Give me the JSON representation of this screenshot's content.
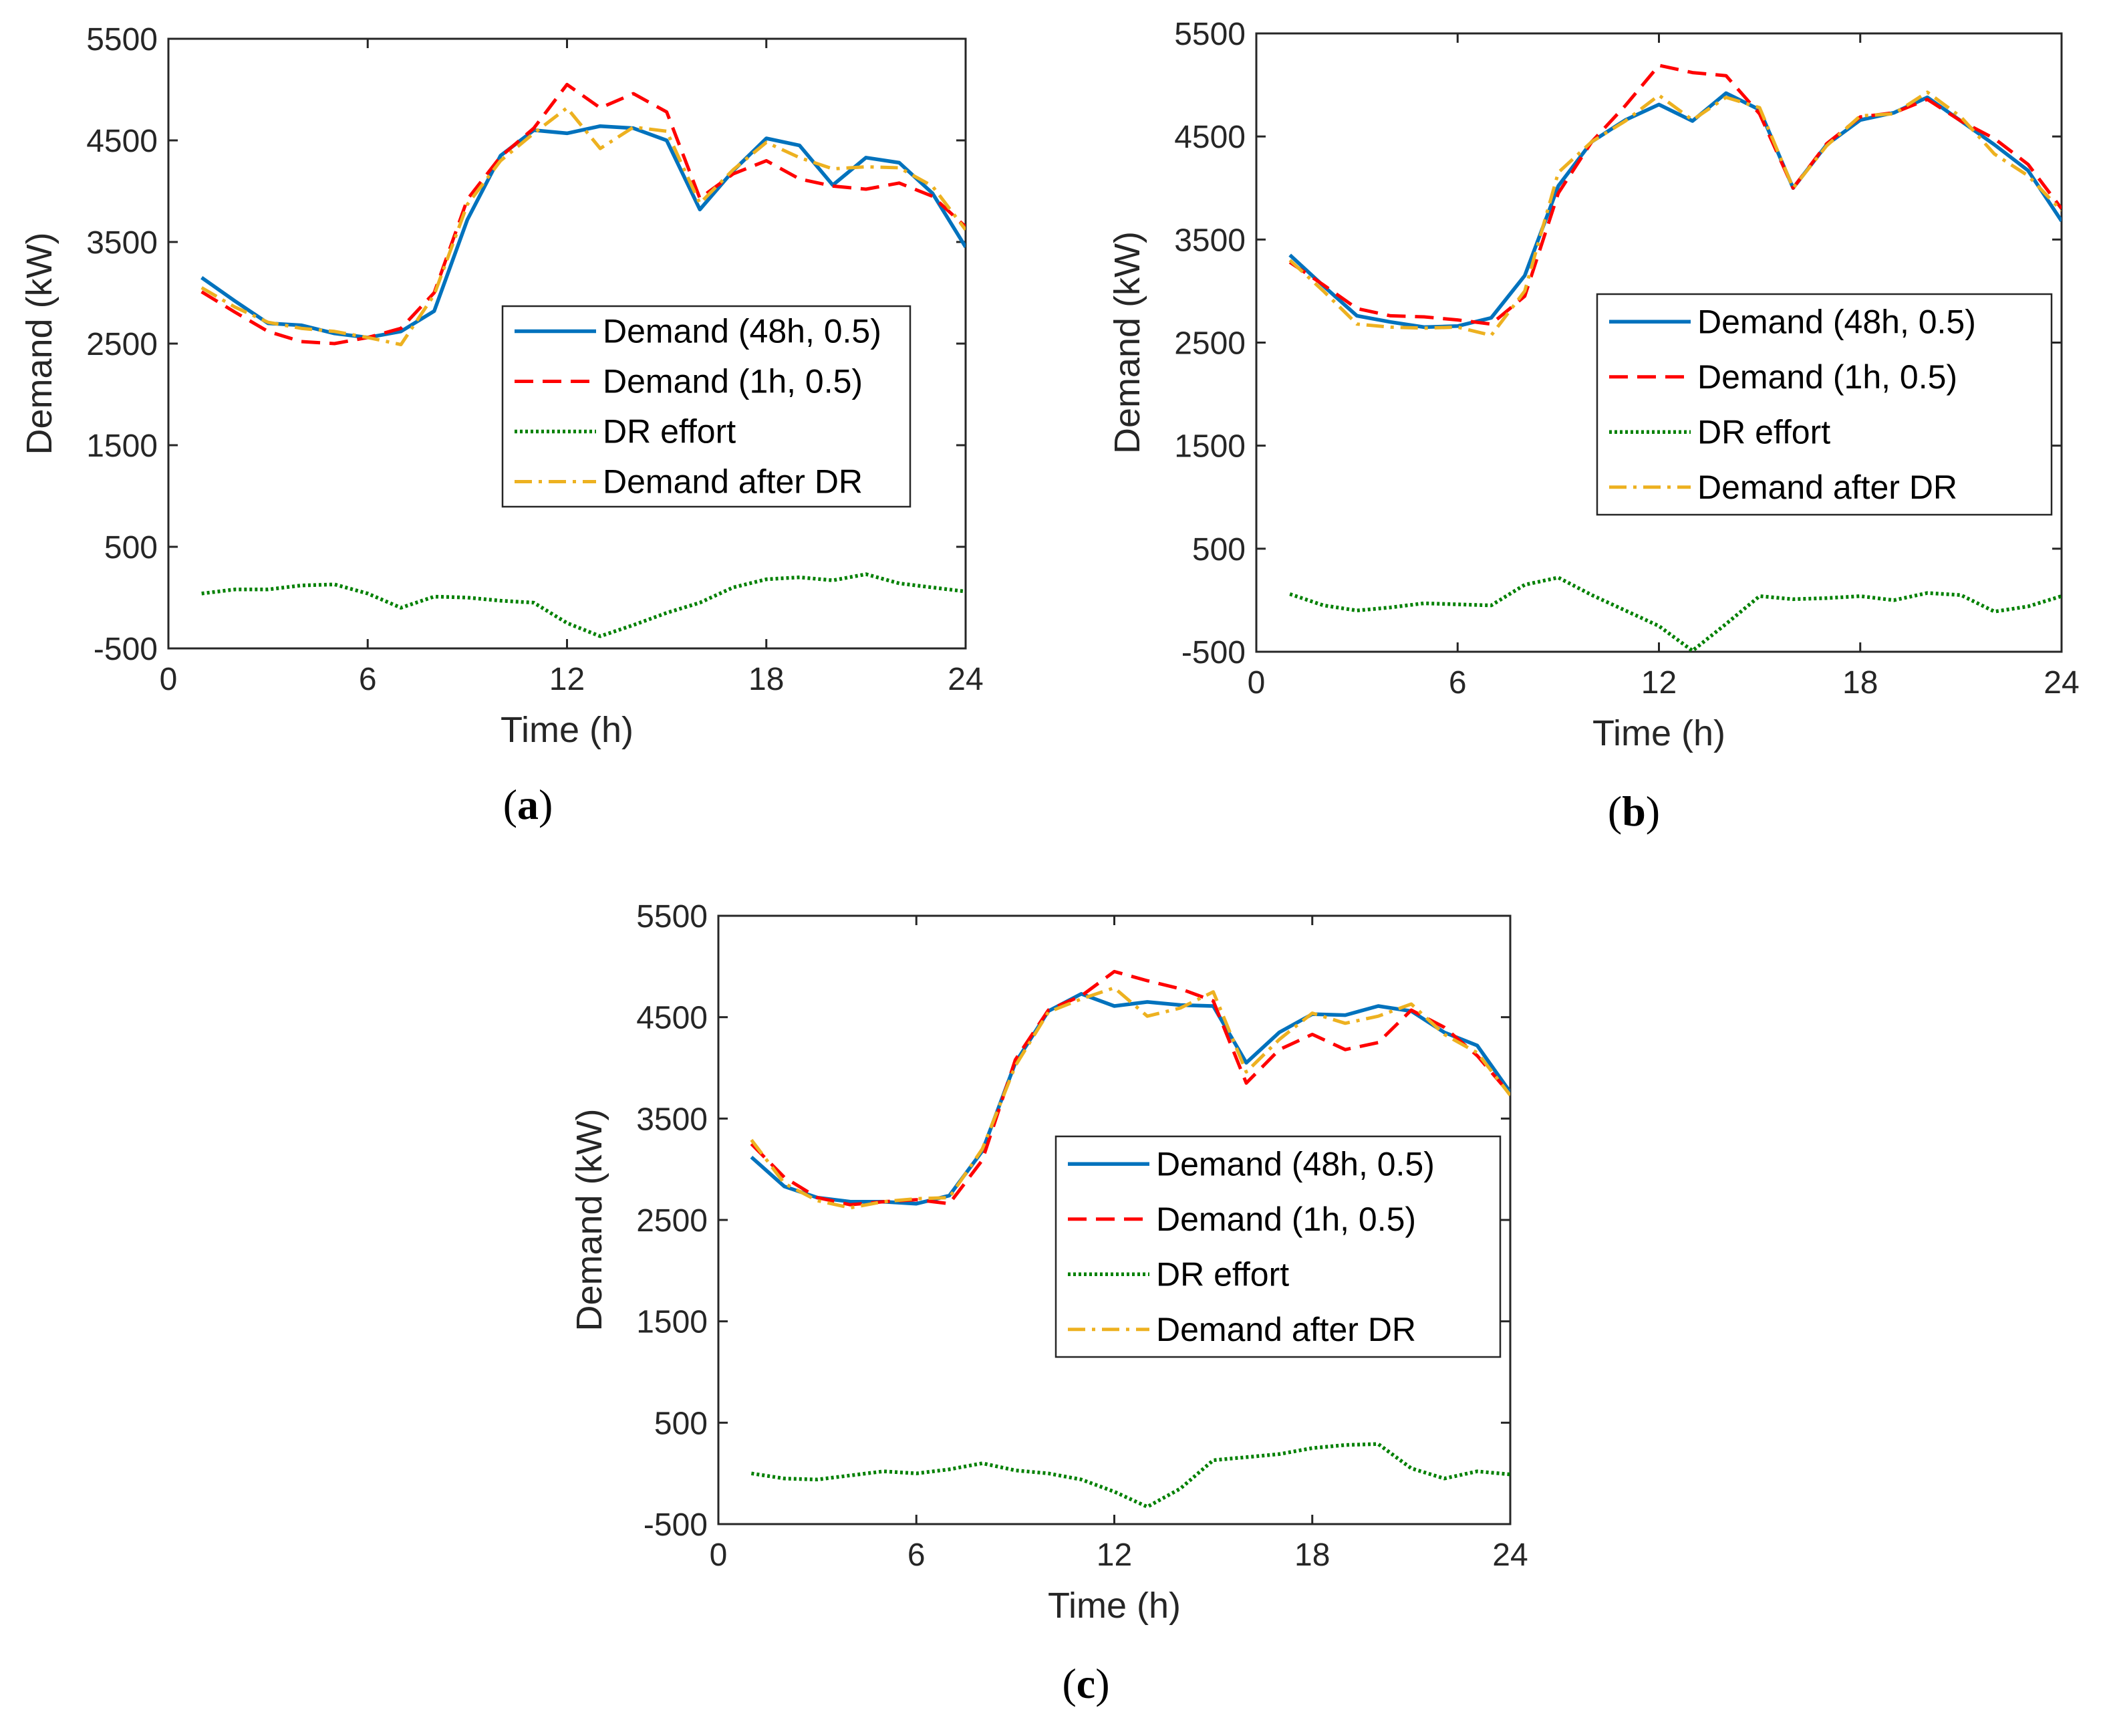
{
  "colors": {
    "demand_48h": "#0072BD",
    "demand_1h": "#FF0000",
    "dr_effort": "#008000",
    "demand_after_dr": "#EDB120",
    "axis": "#262626"
  },
  "chart_data": [
    {
      "type": "line",
      "panel_label": "a",
      "xlabel": "Time (h)",
      "ylabel": "Demand (kW)",
      "xlim": [
        0,
        24
      ],
      "ylim": [
        -500,
        5500
      ],
      "xticks": [
        "0",
        "6",
        "12",
        "18",
        "24"
      ],
      "yticks": [
        "-500",
        "500",
        "1500",
        "2500",
        "3500",
        "4500",
        "5500"
      ],
      "grid": false,
      "legend_position": "right",
      "x": [
        1,
        2,
        3,
        4,
        5,
        6,
        7,
        8,
        9,
        10,
        11,
        12,
        13,
        14,
        15,
        16,
        17,
        18,
        19,
        20,
        21,
        22,
        23,
        24
      ],
      "series": [
        {
          "name": "Demand (48h, 0.5)",
          "style": "solid",
          "values": [
            3150,
            2920,
            2700,
            2680,
            2600,
            2560,
            2620,
            2820,
            3720,
            4350,
            4600,
            4570,
            4640,
            4620,
            4500,
            3820,
            4200,
            4520,
            4450,
            4060,
            4330,
            4280,
            3980,
            3450
          ]
        },
        {
          "name": "Demand (1h, 0.5)",
          "style": "dashed",
          "values": [
            3010,
            2810,
            2620,
            2520,
            2500,
            2560,
            2650,
            3000,
            3920,
            4340,
            4620,
            5050,
            4820,
            4960,
            4780,
            3930,
            4170,
            4300,
            4120,
            4050,
            4020,
            4080,
            3950,
            3650
          ]
        },
        {
          "name": "DR effort",
          "style": "dotted",
          "values": [
            40,
            80,
            80,
            120,
            130,
            40,
            -100,
            10,
            0,
            -30,
            -50,
            -250,
            -380,
            -270,
            -150,
            -50,
            100,
            180,
            200,
            170,
            230,
            140,
            100,
            60
          ]
        },
        {
          "name": "Demand after DR",
          "style": "dashdot",
          "values": [
            3050,
            2860,
            2710,
            2650,
            2620,
            2560,
            2490,
            2980,
            3870,
            4300,
            4570,
            4820,
            4420,
            4630,
            4590,
            3880,
            4210,
            4480,
            4330,
            4220,
            4240,
            4230,
            4050,
            3620
          ]
        }
      ]
    },
    {
      "type": "line",
      "panel_label": "b",
      "xlabel": "Time (h)",
      "ylabel": "Demand (kW)",
      "xlim": [
        0,
        24
      ],
      "ylim": [
        -500,
        5500
      ],
      "xticks": [
        "0",
        "6",
        "12",
        "18",
        "24"
      ],
      "yticks": [
        "-500",
        "500",
        "1500",
        "2500",
        "3500",
        "4500",
        "5500"
      ],
      "grid": false,
      "legend_position": "right",
      "x": [
        1,
        2,
        3,
        4,
        5,
        6,
        7,
        8,
        9,
        10,
        11,
        12,
        13,
        14,
        15,
        16,
        17,
        18,
        19,
        20,
        21,
        22,
        23,
        24
      ],
      "series": [
        {
          "name": "Demand (48h, 0.5)",
          "style": "solid",
          "values": [
            3350,
            3050,
            2760,
            2700,
            2650,
            2660,
            2740,
            3150,
            4020,
            4450,
            4660,
            4810,
            4650,
            4920,
            4760,
            4000,
            4420,
            4660,
            4730,
            4880,
            4650,
            4420,
            4170,
            3680
          ]
        },
        {
          "name": "Demand (1h, 0.5)",
          "style": "dashed",
          "values": [
            3280,
            3060,
            2830,
            2760,
            2750,
            2720,
            2680,
            2950,
            3950,
            4450,
            4800,
            5190,
            5120,
            5090,
            4720,
            4000,
            4430,
            4690,
            4730,
            4860,
            4650,
            4480,
            4230,
            3800
          ]
        },
        {
          "name": "DR effort",
          "style": "dotted",
          "values": [
            60,
            -50,
            -100,
            -70,
            -30,
            -40,
            -50,
            150,
            220,
            50,
            -100,
            -250,
            -490,
            -230,
            40,
            10,
            20,
            40,
            0,
            70,
            50,
            -110,
            -60,
            40
          ]
        },
        {
          "name": "Demand after DR",
          "style": "dashdot",
          "values": [
            3300,
            3000,
            2680,
            2650,
            2640,
            2650,
            2570,
            3000,
            4150,
            4450,
            4650,
            4900,
            4660,
            4880,
            4780,
            4000,
            4410,
            4700,
            4720,
            4930,
            4690,
            4330,
            4120,
            3780
          ]
        }
      ]
    },
    {
      "type": "line",
      "panel_label": "c",
      "xlabel": "Time (h)",
      "ylabel": "Demand (kW)",
      "xlim": [
        0,
        24
      ],
      "ylim": [
        -500,
        5500
      ],
      "xticks": [
        "0",
        "6",
        "12",
        "18",
        "24"
      ],
      "yticks": [
        "-500",
        "500",
        "1500",
        "2500",
        "3500",
        "4500",
        "5500"
      ],
      "grid": false,
      "legend_position": "right",
      "x": [
        1,
        2,
        3,
        4,
        5,
        6,
        7,
        8,
        9,
        10,
        11,
        12,
        13,
        14,
        15,
        16,
        17,
        18,
        19,
        20,
        21,
        22,
        23,
        24
      ],
      "series": [
        {
          "name": "Demand (48h, 0.5)",
          "style": "solid",
          "values": [
            3120,
            2830,
            2720,
            2680,
            2680,
            2660,
            2740,
            3180,
            4050,
            4560,
            4730,
            4610,
            4650,
            4620,
            4610,
            4050,
            4350,
            4530,
            4520,
            4610,
            4560,
            4350,
            4220,
            3760
          ]
        },
        {
          "name": "Demand (1h, 0.5)",
          "style": "dashed",
          "values": [
            3250,
            2920,
            2720,
            2650,
            2680,
            2700,
            2660,
            3090,
            4080,
            4570,
            4710,
            4950,
            4860,
            4780,
            4660,
            3850,
            4180,
            4330,
            4180,
            4250,
            4570,
            4400,
            4120,
            3740
          ]
        },
        {
          "name": "DR effort",
          "style": "dotted",
          "values": [
            0,
            -50,
            -60,
            -20,
            20,
            0,
            40,
            100,
            30,
            0,
            -60,
            -180,
            -330,
            -150,
            130,
            160,
            190,
            250,
            280,
            290,
            50,
            -50,
            20,
            -10
          ]
        },
        {
          "name": "Demand after DR",
          "style": "dashdot",
          "values": [
            3290,
            2860,
            2690,
            2620,
            2680,
            2710,
            2720,
            3200,
            4020,
            4550,
            4680,
            4790,
            4510,
            4590,
            4750,
            3960,
            4280,
            4540,
            4440,
            4510,
            4630,
            4330,
            4150,
            3730
          ]
        }
      ]
    }
  ]
}
